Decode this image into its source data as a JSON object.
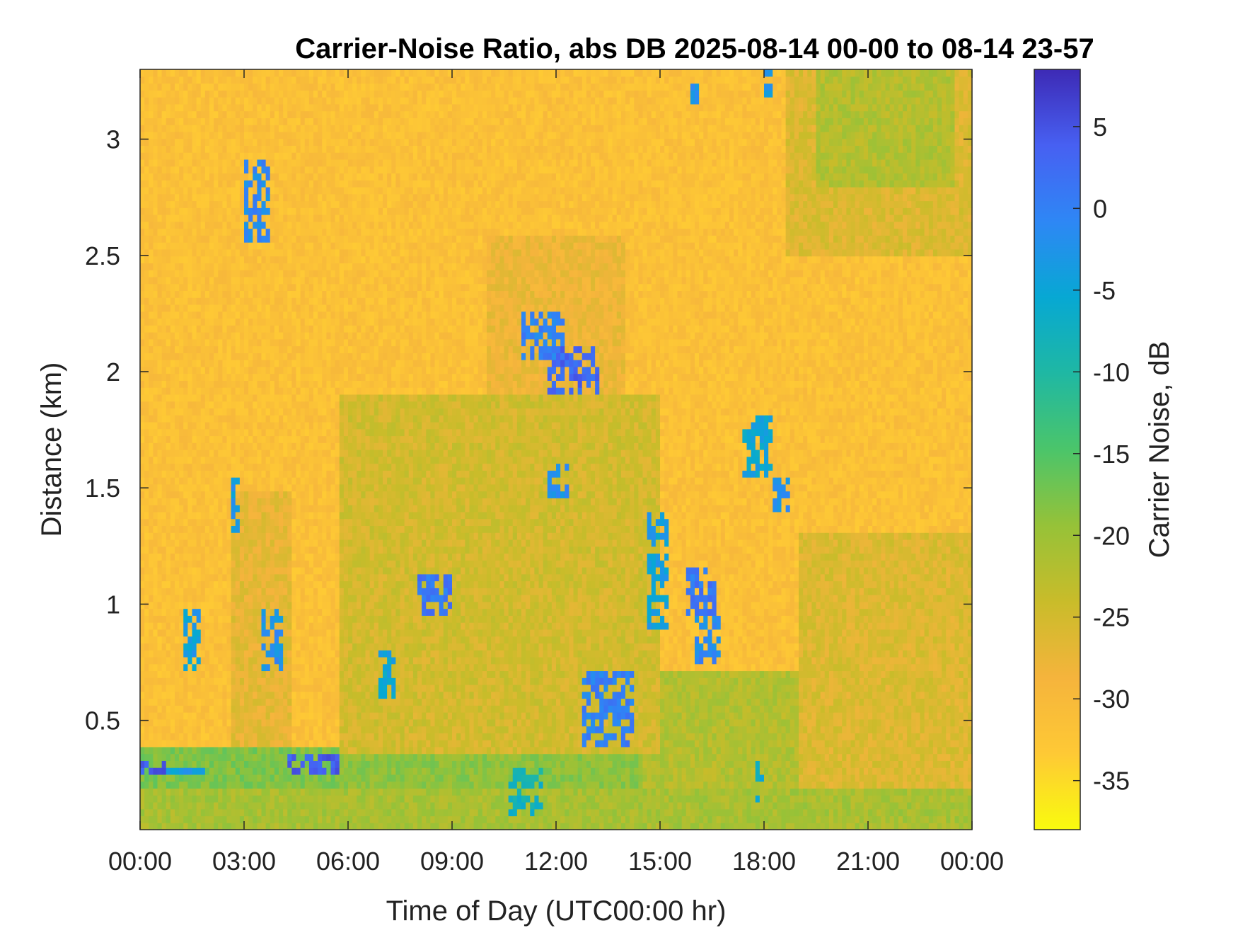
{
  "chart_data": {
    "type": "heatmap",
    "title": "Carrier-Noise Ratio, abs DB 2025-08-14 00-00 to 08-14 23-57",
    "xlabel": "Time of Day (UTC00:00 hr)",
    "ylabel": "Distance (km)",
    "colorbar_label": "Carrier Noise, dB",
    "xlim_hours": [
      0,
      24
    ],
    "ylim_km": [
      0.03,
      3.3
    ],
    "clim_db": [
      -38,
      8.5
    ],
    "x_ticks": [
      {
        "value": 0,
        "label": "00:00"
      },
      {
        "value": 3,
        "label": "03:00"
      },
      {
        "value": 6,
        "label": "06:00"
      },
      {
        "value": 9,
        "label": "09:00"
      },
      {
        "value": 12,
        "label": "12:00"
      },
      {
        "value": 15,
        "label": "15:00"
      },
      {
        "value": 18,
        "label": "18:00"
      },
      {
        "value": 21,
        "label": "21:00"
      },
      {
        "value": 24,
        "label": "00:00"
      }
    ],
    "y_ticks": [
      {
        "value": 0.5,
        "label": "0.5"
      },
      {
        "value": 1,
        "label": "1"
      },
      {
        "value": 1.5,
        "label": "1.5"
      },
      {
        "value": 2,
        "label": "2"
      },
      {
        "value": 2.5,
        "label": "2.5"
      },
      {
        "value": 3,
        "label": "3"
      }
    ],
    "colorbar_ticks": [
      {
        "value": 5,
        "label": "5"
      },
      {
        "value": 0,
        "label": "0"
      },
      {
        "value": -5,
        "label": "-5"
      },
      {
        "value": -10,
        "label": "-10"
      },
      {
        "value": -15,
        "label": "-15"
      },
      {
        "value": -20,
        "label": "-20"
      },
      {
        "value": -25,
        "label": "-25"
      },
      {
        "value": -30,
        "label": "-30"
      },
      {
        "value": -35,
        "label": "-35"
      }
    ],
    "background_db": -31.5,
    "regions": [
      {
        "t": [
          0,
          24
        ],
        "d": [
          0.03,
          0.2
        ],
        "db": -21
      },
      {
        "t": [
          0,
          5.8
        ],
        "d": [
          0.2,
          0.38
        ],
        "db": -18
      },
      {
        "t": [
          5.8,
          14.5
        ],
        "d": [
          0.2,
          0.35
        ],
        "db": -19
      },
      {
        "t": [
          14.5,
          24
        ],
        "d": [
          0.2,
          0.4
        ],
        "db": -22
      },
      {
        "t": [
          5.8,
          15
        ],
        "d": [
          0.35,
          1.9
        ],
        "db": -25
      },
      {
        "t": [
          15,
          19
        ],
        "d": [
          0.35,
          0.7
        ],
        "db": -22
      },
      {
        "t": [
          19,
          24
        ],
        "d": [
          0.2,
          1.3
        ],
        "db": -26
      },
      {
        "t": [
          2.6,
          4.4
        ],
        "d": [
          0.4,
          1.5
        ],
        "db": -27
      },
      {
        "t": [
          10,
          14
        ],
        "d": [
          1.9,
          2.6
        ],
        "db": -28
      },
      {
        "t": [
          18.6,
          24
        ],
        "d": [
          2.5,
          3.3
        ],
        "db": -26
      },
      {
        "t": [
          19.5,
          23.5
        ],
        "d": [
          2.8,
          3.3
        ],
        "db": -22
      }
    ],
    "echoes": [
      {
        "t": [
          0,
          0.7
        ],
        "d": [
          0.27,
          0.33
        ],
        "db": 4
      },
      {
        "t": [
          0.7,
          1.9
        ],
        "d": [
          0.28,
          0.31
        ],
        "db": -4
      },
      {
        "t": [
          4.2,
          5.8
        ],
        "d": [
          0.28,
          0.36
        ],
        "db": 4
      },
      {
        "t": [
          1.2,
          1.8
        ],
        "d": [
          0.72,
          0.98
        ],
        "db": -4
      },
      {
        "t": [
          3.5,
          4.1
        ],
        "d": [
          0.72,
          0.98
        ],
        "db": -2
      },
      {
        "t": [
          2.6,
          2.9
        ],
        "d": [
          1.3,
          1.55
        ],
        "db": -3
      },
      {
        "t": [
          3.0,
          3.7
        ],
        "d": [
          2.55,
          2.9
        ],
        "db": -1
      },
      {
        "t": [
          8.0,
          9.0
        ],
        "d": [
          0.95,
          1.12
        ],
        "db": 1
      },
      {
        "t": [
          6.9,
          7.4
        ],
        "d": [
          0.6,
          0.8
        ],
        "db": -5
      },
      {
        "t": [
          11.0,
          12.2
        ],
        "d": [
          2.05,
          2.25
        ],
        "db": 0
      },
      {
        "t": [
          11.8,
          13.2
        ],
        "d": [
          1.9,
          2.1
        ],
        "db": 3
      },
      {
        "t": [
          11.8,
          12.4
        ],
        "d": [
          1.45,
          1.62
        ],
        "db": -2
      },
      {
        "t": [
          12.7,
          14.3
        ],
        "d": [
          0.38,
          0.72
        ],
        "db": 0
      },
      {
        "t": [
          14.6,
          15.3
        ],
        "d": [
          0.9,
          1.4
        ],
        "db": -4
      },
      {
        "t": [
          15.8,
          16.6
        ],
        "d": [
          0.95,
          1.15
        ],
        "db": 1
      },
      {
        "t": [
          16.0,
          16.7
        ],
        "d": [
          0.75,
          0.95
        ],
        "db": -1
      },
      {
        "t": [
          17.4,
          18.2
        ],
        "d": [
          1.55,
          1.82
        ],
        "db": -5
      },
      {
        "t": [
          18.2,
          18.7
        ],
        "d": [
          1.4,
          1.55
        ],
        "db": -2
      },
      {
        "t": [
          10.6,
          11.6
        ],
        "d": [
          0.1,
          0.3
        ],
        "db": -8
      },
      {
        "t": [
          17.7,
          18.0
        ],
        "d": [
          0.15,
          0.32
        ],
        "db": -6
      },
      {
        "t": [
          18.0,
          18.3
        ],
        "d": [
          3.15,
          3.3
        ],
        "db": -3
      },
      {
        "t": [
          15.9,
          16.1
        ],
        "d": [
          3.15,
          3.28
        ],
        "db": -2
      }
    ]
  }
}
